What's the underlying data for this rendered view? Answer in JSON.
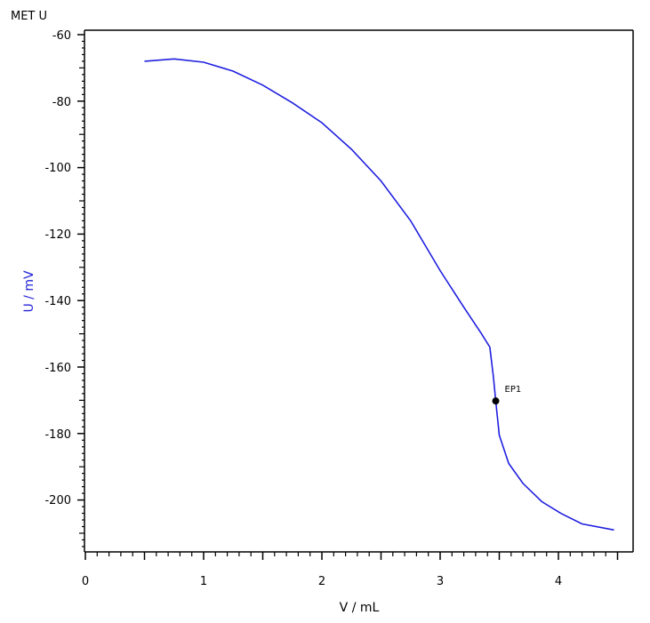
{
  "chart_data": {
    "type": "line",
    "title": "MET U",
    "xlabel": "V / mL",
    "ylabel": "U / mV",
    "xlim": [
      0,
      4.65
    ],
    "ylim": [
      -215.5,
      -60
    ],
    "x_ticks": [
      0,
      1,
      2,
      3,
      4
    ],
    "y_ticks": [
      -60,
      -80,
      -100,
      -120,
      -140,
      -160,
      -180,
      -200
    ],
    "grid": false,
    "line_color": "#1f1fe0",
    "ylabel_color": "#2323d8",
    "series": [
      {
        "name": "U",
        "x": [
          0.5,
          0.75,
          1.0,
          1.25,
          1.5,
          1.75,
          2.0,
          2.25,
          2.5,
          2.75,
          3.0,
          3.2,
          3.35,
          3.42,
          3.45,
          3.47,
          3.5,
          3.58,
          3.7,
          3.86,
          4.02,
          4.2,
          4.47
        ],
        "y": [
          -68.0,
          -67.3,
          -68.3,
          -71.0,
          -75.2,
          -80.5,
          -86.5,
          -94.5,
          -104.0,
          -116.0,
          -131.0,
          -142.0,
          -150.0,
          -154.0,
          -163.0,
          -170.2,
          -180.5,
          -189.0,
          -195.0,
          -200.5,
          -204.0,
          -207.2,
          -209.0
        ]
      }
    ],
    "annotations": [
      {
        "label": "EP1",
        "x": 3.47,
        "y": -170.2
      }
    ]
  },
  "labels": {
    "title": "MET U",
    "xlabel": "V / mL",
    "ylabel": "U / mV",
    "ep": "EP1",
    "xt0": "0",
    "xt1": "1",
    "xt2": "2",
    "xt3": "3",
    "xt4": "4",
    "yt60": "-60",
    "yt80": "-80",
    "yt100": "-100",
    "yt120": "-120",
    "yt140": "-140",
    "yt160": "-160",
    "yt180": "-180",
    "yt200": "-200"
  }
}
